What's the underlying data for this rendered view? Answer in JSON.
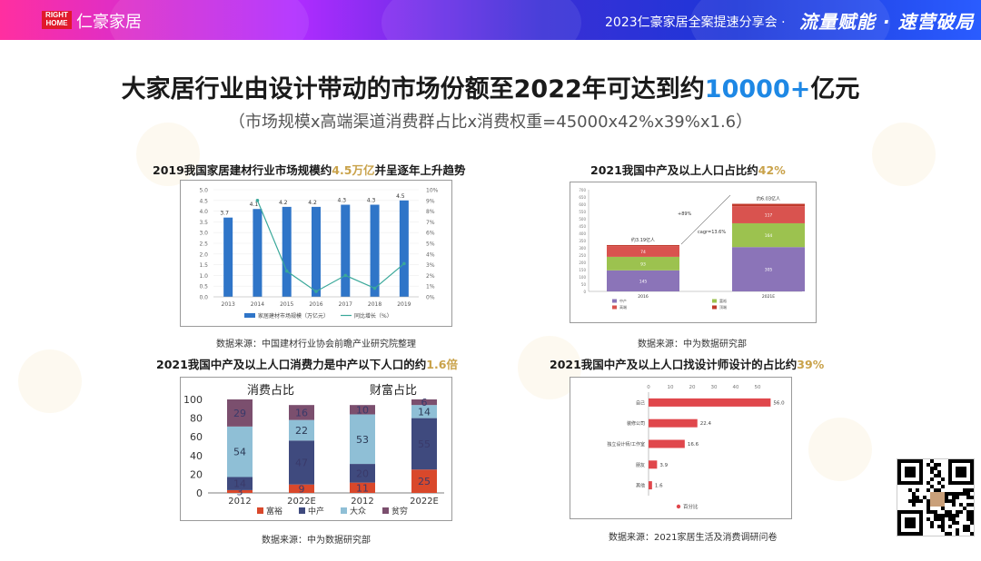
{
  "header": {
    "logo_top": "RIGHT",
    "logo_bottom": "HOME",
    "logo_name": "仁豪家居",
    "event": "2023仁豪家居全案提速分享会 ·",
    "slogan": "流量赋能 · 速营破局"
  },
  "headline": {
    "text_before": "大家居行业由设计带动的市场份额至2022年可达到约",
    "highlight": "10000+",
    "text_after": "亿元"
  },
  "formula": "（市场规模x高端渠道消费群占比x消费权重=45000x42%x39%x1.6）",
  "panels": {
    "p1": {
      "title": "2019我国家居建材行业市场规模约",
      "highlight": "4.5万亿",
      "title_after": "并呈逐年上升趋势",
      "source": "数据来源：中国建材行业协会前瞻产业研究院整理"
    },
    "p2": {
      "title": "2021我国中产及以上人口占比约",
      "highlight": "42%",
      "source": "数据来源：中为数据研究部"
    },
    "p3": {
      "title": "2021我国中产及以上人口消费力是中产以下人口的约",
      "highlight": "1.6倍",
      "source": "数据来源：中为数据研究部"
    },
    "p4": {
      "title": "2021我国中产及以上人口找设计师设计的占比约",
      "highlight": "39%",
      "source": "数据来源：2021家居生活及消费调研问卷"
    }
  },
  "chart_data": [
    {
      "type": "bar",
      "categories": [
        "2013",
        "2014",
        "2015",
        "2016",
        "2017",
        "2018",
        "2019"
      ],
      "series": [
        {
          "name": "家居建材市场规模（万亿元）",
          "values": [
            3.7,
            4.1,
            4.2,
            4.2,
            4.3,
            4.3,
            4.5
          ],
          "color": "#2f75c8"
        },
        {
          "name": "同比增长（%）",
          "type": "line",
          "axis": "right",
          "values": [
            null,
            9.0,
            2.4,
            0.5,
            2.0,
            0.8,
            3.1
          ],
          "color": "#3aa89a"
        }
      ],
      "ylim": [
        0,
        5
      ],
      "y_ticks": [
        "0.0",
        "0.5",
        "1.0",
        "1.5",
        "2.0",
        "2.5",
        "3.0",
        "3.5",
        "4.0",
        "4.5",
        "5.0"
      ],
      "y2lim": [
        0,
        10
      ],
      "y2_ticks": [
        "0%",
        "1%",
        "2%",
        "3%",
        "4%",
        "5%",
        "6%",
        "7%",
        "8%",
        "9%",
        "10%"
      ],
      "legend": "bottom"
    },
    {
      "type": "bar",
      "stacked": true,
      "categories": [
        "2016",
        "2021E"
      ],
      "category_labels": [
        "2016",
        "2021E"
      ],
      "totals": [
        "约3.19亿人",
        "约6.03亿人"
      ],
      "series": [
        {
          "name": "中产",
          "values": [
            145,
            305
          ],
          "color": "#8b74b8"
        },
        {
          "name": "富裕",
          "values": [
            93,
            164
          ],
          "color": "#9cc24f"
        },
        {
          "name": "高端",
          "values": [
            74,
            117
          ],
          "color": "#d9534f"
        },
        {
          "name": "顶端",
          "values": [
            7,
            17
          ],
          "color": "#c0392b"
        }
      ],
      "annotations": [
        "+89%",
        "cagr=13.6%"
      ],
      "ylim": [
        0,
        700
      ],
      "y_ticks": [
        "0",
        "50",
        "100",
        "150",
        "200",
        "250",
        "300",
        "350",
        "400",
        "450",
        "500",
        "550",
        "600",
        "650",
        "700"
      ]
    },
    {
      "type": "bar",
      "stacked": true,
      "categories": [
        "2012",
        "2022E",
        "2012",
        "2022E"
      ],
      "group_labels": [
        "消费占比",
        "财富占比"
      ],
      "series": [
        {
          "name": "富裕",
          "values": [
            3,
            9,
            11,
            25
          ],
          "color": "#d9482b"
        },
        {
          "name": "中产",
          "values": [
            14,
            47,
            20,
            55
          ],
          "color": "#3f4a7e"
        },
        {
          "name": "大众",
          "values": [
            54,
            22,
            53,
            14
          ],
          "color": "#8fbfd6"
        },
        {
          "name": "贫穷",
          "values": [
            29,
            16,
            10,
            6
          ],
          "color": "#7b4f6e"
        }
      ],
      "ylim": [
        0,
        100
      ],
      "y_ticks": [
        "0",
        "20",
        "40",
        "60",
        "80",
        "100"
      ],
      "legend": "bottom"
    },
    {
      "type": "bar",
      "orientation": "horizontal",
      "categories": [
        "自己",
        "装修公司",
        "独立设计师/工作室",
        "朋友",
        "其他"
      ],
      "series": [
        {
          "name": "百分比",
          "values": [
            56.0,
            22.4,
            16.6,
            3.9,
            1.6
          ],
          "color": "#e0474c"
        }
      ],
      "xlim": [
        0,
        60
      ],
      "x_ticks": [
        "0",
        "10",
        "20",
        "30",
        "40",
        "50"
      ],
      "legend": "bottom"
    }
  ]
}
